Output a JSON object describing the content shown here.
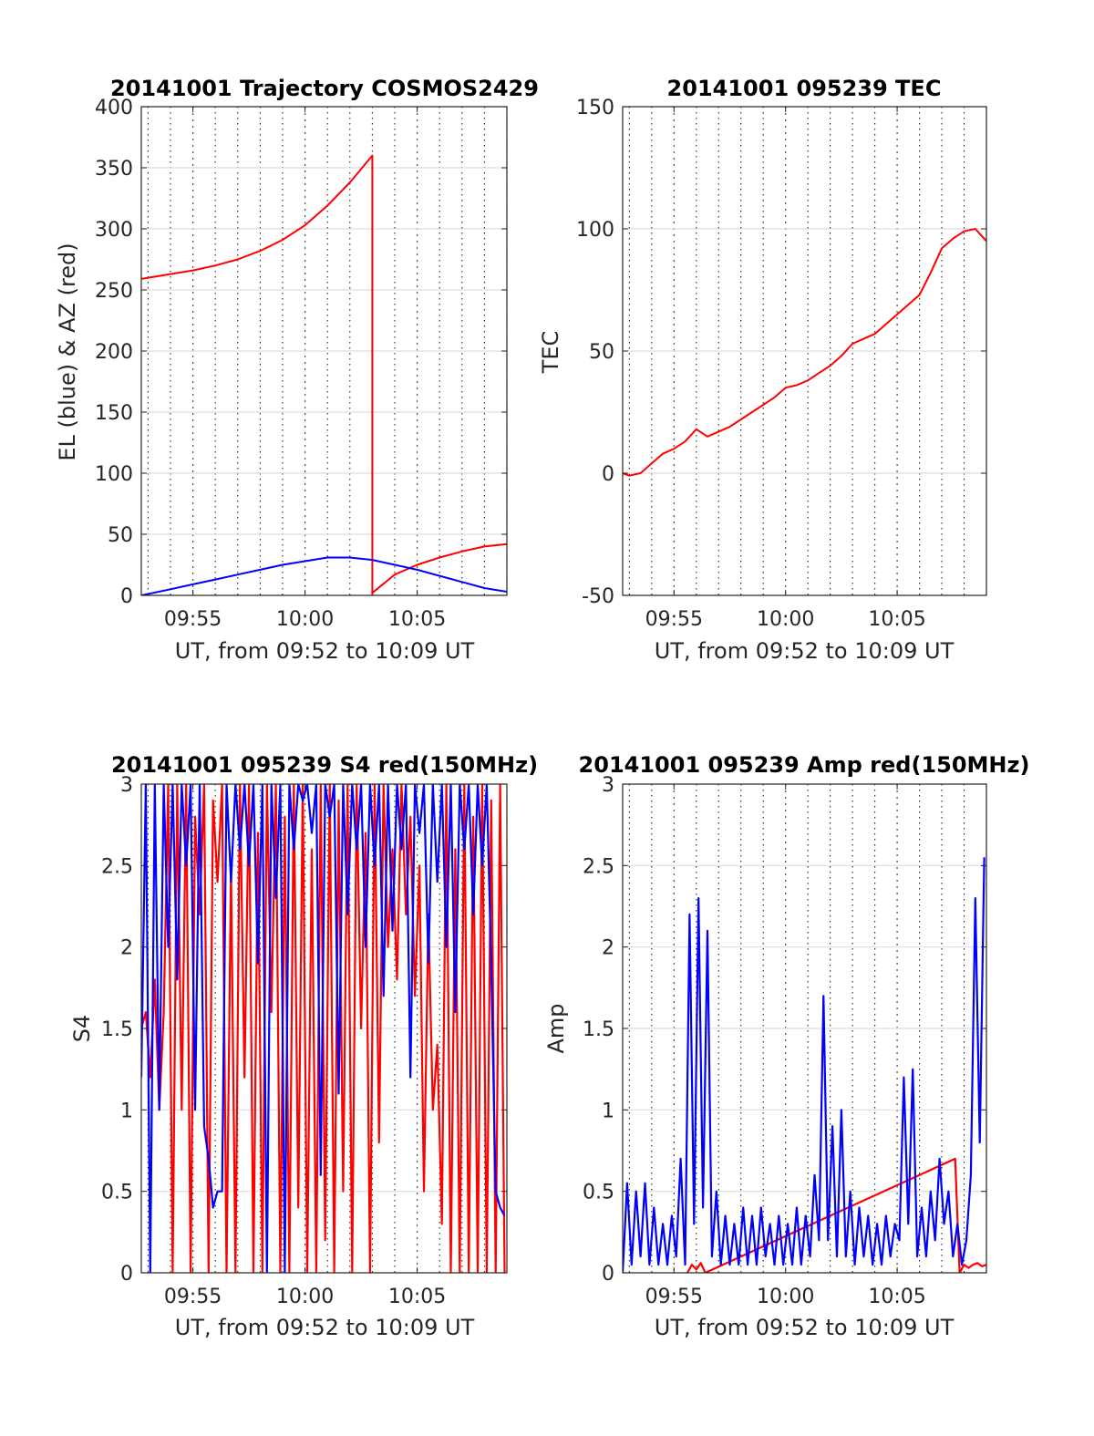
{
  "chart_data": [
    {
      "type": "line",
      "title": "20141001 Trajectory COSMOS2429",
      "xlabel": "UT, from 09:52 to 10:09 UT",
      "ylabel": "EL (blue) & AZ (red)",
      "x_unit": "minutes past 09:00 UT",
      "xlim": [
        52.7,
        69.0
      ],
      "ylim": [
        0,
        400
      ],
      "x_ticks": [
        {
          "v": 55,
          "label": "09:55"
        },
        {
          "v": 60,
          "label": "10:00"
        },
        {
          "v": 65,
          "label": "10:05"
        }
      ],
      "y_ticks": [
        0,
        50,
        100,
        150,
        200,
        250,
        300,
        350,
        400
      ],
      "grid": true,
      "series": [
        {
          "color": "#ff0000",
          "x": [
            52.7,
            54,
            55,
            56,
            57,
            58,
            59,
            60,
            61,
            62,
            63.0,
            63.0,
            63.0,
            64,
            65,
            66,
            67,
            68,
            69.0
          ],
          "y": [
            259,
            263,
            266,
            270,
            275,
            282,
            291,
            303,
            319,
            338,
            360,
            0,
            2,
            17,
            25,
            31,
            36,
            40,
            42
          ]
        },
        {
          "color": "#0000ff",
          "x": [
            52.7,
            54,
            55,
            56,
            57,
            58,
            59,
            60,
            61,
            62,
            63,
            64,
            65,
            66,
            67,
            68,
            69.0
          ],
          "y": [
            0,
            5,
            9,
            13,
            17,
            21,
            25,
            28,
            31,
            31,
            29,
            25,
            21,
            16,
            11,
            6,
            3
          ]
        }
      ]
    },
    {
      "type": "line",
      "title": "20141001 095239 TEC",
      "xlabel": "UT, from 09:52 to 10:09 UT",
      "ylabel": "TEC",
      "x_unit": "minutes past 09:00 UT",
      "xlim": [
        52.7,
        69.0
      ],
      "ylim": [
        -50,
        150
      ],
      "x_ticks": [
        {
          "v": 55,
          "label": "09:55"
        },
        {
          "v": 60,
          "label": "10:00"
        },
        {
          "v": 65,
          "label": "10:05"
        }
      ],
      "y_ticks": [
        -50,
        0,
        50,
        100,
        150
      ],
      "grid": true,
      "series": [
        {
          "color": "#ff0000",
          "x": [
            52.7,
            53,
            53.5,
            54,
            54.5,
            55,
            55.5,
            56,
            56.5,
            57,
            57.5,
            58,
            58.5,
            59,
            59.5,
            60,
            60.5,
            61,
            61.5,
            62,
            62.5,
            63,
            63.5,
            64,
            64.5,
            65,
            65.5,
            66,
            66.5,
            67,
            67.5,
            68,
            68.5,
            69.0
          ],
          "y": [
            0,
            -1,
            0,
            4,
            8,
            10,
            13,
            18,
            15,
            17,
            19,
            22,
            25,
            28,
            31,
            35,
            36,
            38,
            41,
            44,
            48,
            53,
            55,
            57,
            61,
            65,
            69,
            73,
            82,
            92,
            96,
            99,
            100,
            95
          ]
        }
      ]
    },
    {
      "type": "line",
      "title": "20141001 095239 S4 red(150MHz)",
      "xlabel": "UT, from 09:52 to 10:09 UT",
      "ylabel": "S4",
      "x_unit": "minutes past 09:00 UT",
      "xlim": [
        52.7,
        69.0
      ],
      "ylim": [
        0,
        3
      ],
      "x_ticks": [
        {
          "v": 55,
          "label": "09:55"
        },
        {
          "v": 60,
          "label": "10:00"
        },
        {
          "v": 65,
          "label": "10:05"
        }
      ],
      "y_ticks": [
        0,
        0.5,
        1,
        1.5,
        2,
        2.5,
        3
      ],
      "grid": true,
      "series": [
        {
          "color": "#ff0000",
          "x": [
            52.7,
            52.9,
            53.1,
            53.3,
            53.5,
            53.7,
            53.9,
            54.1,
            54.3,
            54.5,
            54.7,
            54.9,
            55.1,
            55.3,
            55.5,
            55.7,
            55.9,
            56.1,
            56.3,
            56.5,
            56.7,
            56.9,
            57.1,
            57.3,
            57.5,
            57.7,
            57.9,
            58.1,
            58.3,
            58.5,
            58.7,
            58.9,
            59.1,
            59.3,
            59.5,
            59.7,
            59.9,
            60.1,
            60.3,
            60.5,
            60.7,
            60.9,
            61.1,
            61.3,
            61.5,
            61.7,
            61.9,
            62.1,
            62.3,
            62.5,
            62.7,
            62.9,
            63.1,
            63.3,
            63.5,
            63.7,
            63.9,
            64.1,
            64.3,
            64.5,
            64.7,
            64.9,
            65.1,
            65.3,
            65.5,
            65.7,
            65.9,
            66.1,
            66.3,
            66.5,
            66.7,
            66.9,
            67.1,
            67.3,
            67.5,
            67.7,
            67.9,
            68.1,
            68.3,
            68.5,
            68.7,
            68.9
          ],
          "y": [
            1.5,
            1.6,
            1.2,
            1.8,
            1.0,
            1.6,
            3.0,
            0.0,
            3.0,
            1.0,
            3.0,
            0.0,
            2.8,
            2.2,
            3.0,
            0.0,
            2.9,
            2.4,
            3.0,
            0.0,
            2.5,
            0.0,
            3.0,
            1.2,
            3.0,
            0.0,
            2.7,
            0.0,
            3.0,
            1.6,
            3.0,
            0.0,
            2.8,
            0.0,
            3.0,
            0.4,
            3.0,
            0.0,
            2.6,
            0.0,
            3.0,
            0.2,
            3.0,
            0.0,
            2.9,
            0.5,
            3.0,
            0.0,
            3.0,
            1.5,
            2.7,
            0.0,
            3.0,
            0.8,
            3.0,
            2.0,
            2.6,
            1.8,
            3.0,
            2.2,
            2.8,
            1.7,
            2.5,
            0.5,
            2.2,
            1.0,
            1.4,
            0.3,
            3.0,
            0.0,
            2.6,
            0.0,
            3.0,
            0.0,
            2.8,
            0.0,
            3.0,
            0.0,
            2.9,
            0.0,
            3.0,
            0.0
          ]
        },
        {
          "color": "#0000ff",
          "x": [
            52.7,
            52.9,
            53.1,
            53.3,
            53.5,
            53.7,
            53.9,
            54.1,
            54.3,
            54.5,
            54.7,
            54.9,
            55.1,
            55.3,
            55.5,
            55.7,
            55.9,
            56.1,
            56.3,
            56.5,
            56.7,
            56.9,
            57.1,
            57.3,
            57.5,
            57.7,
            57.9,
            58.1,
            58.3,
            58.5,
            58.7,
            58.9,
            59.1,
            59.3,
            59.5,
            59.7,
            59.9,
            60.1,
            60.3,
            60.5,
            60.7,
            60.9,
            61.1,
            61.3,
            61.5,
            61.7,
            61.9,
            62.1,
            62.3,
            62.5,
            62.7,
            62.9,
            63.1,
            63.3,
            63.5,
            63.7,
            63.9,
            64.1,
            64.3,
            64.5,
            64.7,
            64.9,
            65.1,
            65.3,
            65.5,
            65.7,
            65.9,
            66.1,
            66.3,
            66.5,
            66.7,
            66.9,
            67.1,
            67.3,
            67.5,
            67.7,
            67.9,
            68.1,
            68.3,
            68.5,
            68.7,
            68.9
          ],
          "y": [
            1.2,
            3.0,
            0.0,
            3.0,
            1.0,
            3.0,
            2.0,
            3.0,
            1.8,
            3.0,
            2.5,
            3.0,
            1.0,
            3.0,
            0.9,
            0.7,
            0.4,
            0.5,
            0.5,
            3.0,
            2.4,
            3.0,
            2.6,
            3.0,
            2.5,
            3.0,
            1.9,
            3.0,
            0.0,
            3.0,
            2.3,
            3.0,
            0.0,
            3.0,
            2.6,
            3.0,
            2.9,
            3.0,
            2.7,
            3.0,
            0.6,
            3.0,
            2.8,
            3.0,
            1.1,
            3.0,
            2.2,
            3.0,
            2.6,
            3.0,
            2.0,
            3.0,
            2.5,
            3.0,
            1.7,
            3.0,
            2.1,
            3.0,
            2.6,
            3.0,
            1.2,
            3.0,
            2.7,
            3.0,
            1.9,
            3.0,
            2.4,
            3.0,
            2.0,
            3.0,
            1.6,
            3.0,
            2.6,
            3.0,
            2.2,
            3.0,
            2.5,
            3.0,
            1.9,
            0.5,
            0.4,
            0.35
          ]
        }
      ]
    },
    {
      "type": "line",
      "title": "20141001 095239 Amp red(150MHz)",
      "xlabel": "UT, from 09:52 to 10:09 UT",
      "ylabel": "Amp",
      "x_unit": "minutes past 09:00 UT",
      "xlim": [
        52.7,
        69.0
      ],
      "ylim": [
        0,
        3
      ],
      "x_ticks": [
        {
          "v": 55,
          "label": "09:55"
        },
        {
          "v": 60,
          "label": "10:00"
        },
        {
          "v": 65,
          "label": "10:05"
        }
      ],
      "y_ticks": [
        0,
        0.5,
        1,
        1.5,
        2,
        2.5,
        3
      ],
      "grid": true,
      "series": [
        {
          "color": "#ff0000",
          "x": [
            55.6,
            55.8,
            56.0,
            56.2,
            56.4,
            67.6,
            67.8,
            68.0,
            68.2,
            68.4,
            68.6,
            68.8,
            69.0
          ],
          "y": [
            0.0,
            0.05,
            0.02,
            0.06,
            0.0,
            0.7,
            0.0,
            0.05,
            0.03,
            0.05,
            0.06,
            0.04,
            0.05
          ]
        },
        {
          "color": "#0000ff",
          "x": [
            52.7,
            52.9,
            53.1,
            53.3,
            53.5,
            53.7,
            53.9,
            54.1,
            54.3,
            54.5,
            54.7,
            54.9,
            55.1,
            55.3,
            55.5,
            55.7,
            55.9,
            56.1,
            56.3,
            56.5,
            56.7,
            56.9,
            57.1,
            57.3,
            57.5,
            57.7,
            57.9,
            58.1,
            58.3,
            58.5,
            58.7,
            58.9,
            59.1,
            59.3,
            59.5,
            59.7,
            59.9,
            60.1,
            60.3,
            60.5,
            60.7,
            60.9,
            61.1,
            61.3,
            61.5,
            61.7,
            61.9,
            62.1,
            62.3,
            62.5,
            62.7,
            62.9,
            63.1,
            63.3,
            63.5,
            63.7,
            63.9,
            64.1,
            64.3,
            64.5,
            64.7,
            64.9,
            65.1,
            65.3,
            65.5,
            65.7,
            65.9,
            66.1,
            66.3,
            66.5,
            66.7,
            66.9,
            67.1,
            67.3,
            67.5,
            67.7,
            67.9,
            68.1,
            68.3,
            68.5,
            68.7,
            68.9
          ],
          "y": [
            0.0,
            0.55,
            0.05,
            0.5,
            0.1,
            0.55,
            0.05,
            0.4,
            0.05,
            0.3,
            0.05,
            0.35,
            0.1,
            0.7,
            0.05,
            2.2,
            0.3,
            2.3,
            0.4,
            2.1,
            0.1,
            0.5,
            0.05,
            0.35,
            0.05,
            0.3,
            0.05,
            0.4,
            0.05,
            0.35,
            0.05,
            0.4,
            0.1,
            0.3,
            0.05,
            0.35,
            0.05,
            0.3,
            0.05,
            0.4,
            0.05,
            0.35,
            0.1,
            0.6,
            0.2,
            1.7,
            0.2,
            0.9,
            0.1,
            1.0,
            0.1,
            0.5,
            0.05,
            0.4,
            0.1,
            0.35,
            0.05,
            0.3,
            0.05,
            0.35,
            0.1,
            0.3,
            0.2,
            1.2,
            0.3,
            1.25,
            0.1,
            0.4,
            0.1,
            0.5,
            0.2,
            0.7,
            0.3,
            0.5,
            0.1,
            0.3,
            0.05,
            0.2,
            0.6,
            2.3,
            0.8,
            2.55
          ]
        }
      ]
    }
  ]
}
